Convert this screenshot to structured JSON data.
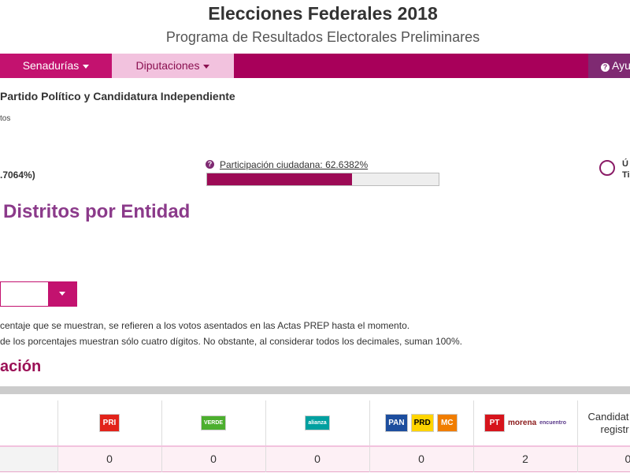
{
  "header": {
    "title": "Elecciones Federales 2018",
    "subtitle": "Programa de Resultados Electorales Preliminares"
  },
  "nav": {
    "items": [
      "Senadurías",
      "Diputaciones"
    ],
    "help": "Ayu"
  },
  "summary": {
    "heading": "Partido Político y Candidatura Independiente",
    "sub": "tos",
    "percent": ".7064%)",
    "participation": {
      "label": "Participación ciudadana: 62.6382%",
      "value": 62.6382
    },
    "right_lines": [
      "Ú",
      "Ti"
    ]
  },
  "section_title": "Distritos por Entidad",
  "notes": [
    "centaje que se muestran, se refieren a los votos asentados en las Actas PREP hasta el momento.",
    "de los porcentajes muestran sólo cuatro dígitos. No obstante, al considerar todos los decimales, suman 100%."
  ],
  "subsection_title": "ación",
  "table": {
    "logos": [
      [
        "PRI"
      ],
      [
        "VERDE"
      ],
      [
        "alianza"
      ],
      [
        "PAN",
        "PRD",
        "MC"
      ],
      [
        "PT",
        "morena",
        "encuentro"
      ]
    ],
    "last_header": [
      "Candidat",
      "registr"
    ],
    "rows": [
      [
        0,
        0,
        0,
        0,
        2,
        0
      ]
    ]
  }
}
